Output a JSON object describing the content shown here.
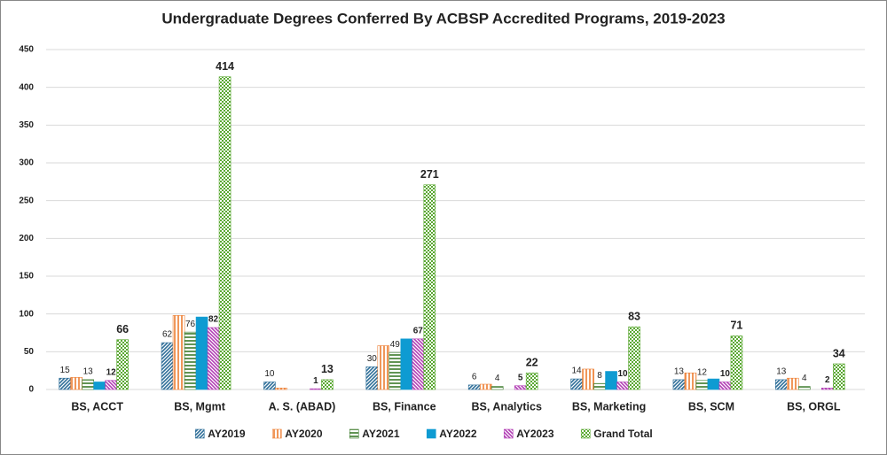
{
  "chart_data": {
    "type": "bar",
    "title": "Undergraduate Degrees Conferred By ACBSP Accredited Programs, 2019-2023",
    "categories": [
      "BS, ACCT",
      "BS, Mgmt",
      "A. S.  (ABAD)",
      "BS, Finance",
      "BS, Analytics",
      "BS, Marketing",
      "BS, SCM",
      "BS, ORGL"
    ],
    "series": [
      {
        "name": "AY2019",
        "color": "#2f6f99",
        "pattern": "diagonal",
        "values": [
          15,
          62,
          10,
          30,
          6,
          14,
          13,
          13
        ],
        "value_labels": [
          "15",
          "62",
          "10",
          "30",
          "6",
          "14",
          "13",
          "13"
        ]
      },
      {
        "name": "AY2020",
        "color": "#ed7d31",
        "pattern": "vertical",
        "values": [
          16,
          98,
          2,
          58,
          7,
          27,
          22,
          15
        ],
        "value_labels": [
          null,
          null,
          null,
          null,
          null,
          null,
          null,
          null
        ]
      },
      {
        "name": "AY2021",
        "color": "#3a7a2a",
        "pattern": "horizontal",
        "values": [
          13,
          76,
          0,
          49,
          4,
          8,
          12,
          4
        ],
        "value_labels": [
          "13",
          "76",
          null,
          "49",
          "4",
          "8",
          "12",
          "4"
        ]
      },
      {
        "name": "AY2022",
        "color": "#0e9bd2",
        "pattern": "solid",
        "values": [
          10,
          96,
          0,
          67,
          0,
          24,
          14,
          0
        ],
        "value_labels": [
          null,
          null,
          null,
          null,
          null,
          null,
          null,
          null
        ]
      },
      {
        "name": "AY2023",
        "color": "#b23fb5",
        "pattern": "diagonal2",
        "values": [
          12,
          82,
          1,
          67,
          5,
          10,
          10,
          2
        ],
        "value_labels": [
          "12",
          "82",
          "1",
          "67",
          "5",
          "10",
          "10",
          "2"
        ]
      },
      {
        "name": "Grand Total",
        "color": "#5aa832",
        "pattern": "checker",
        "values": [
          66,
          414,
          13,
          271,
          22,
          83,
          71,
          34
        ],
        "value_labels": [
          "66",
          "414",
          "13",
          "271",
          "22",
          "83",
          "71",
          "34"
        ]
      }
    ],
    "ylim": [
      0,
      450
    ],
    "yticks": [
      0,
      50,
      100,
      150,
      200,
      250,
      300,
      350,
      400,
      450
    ],
    "grid": true,
    "legend": "bottom"
  }
}
